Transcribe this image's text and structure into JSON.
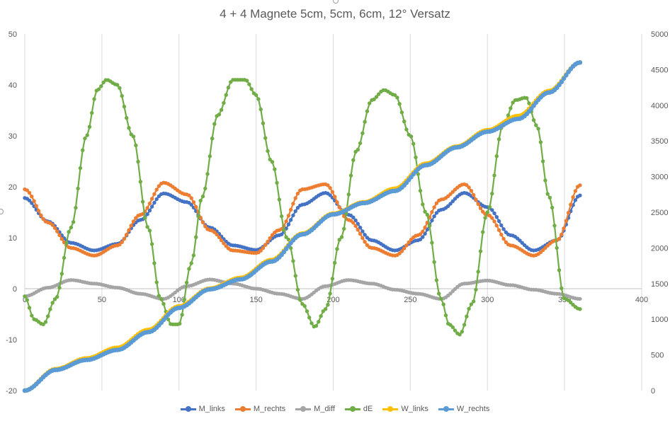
{
  "chart_data": {
    "type": "line",
    "title": "4 + 4 Magnete 5cm, 5cm, 6cm, 12° Versatz",
    "xlim": [
      0,
      400
    ],
    "ylim_left": [
      -20,
      50
    ],
    "ylim_right": [
      0,
      5000
    ],
    "x_ticks": [
      "0",
      "50",
      "100",
      "150",
      "200",
      "250",
      "300",
      "350",
      "400"
    ],
    "y_left_ticks": [
      "-20",
      "-10",
      "0",
      "10",
      "20",
      "30",
      "40",
      "50"
    ],
    "y_right_ticks": [
      "0",
      "500",
      "1000",
      "1500",
      "2000",
      "2500",
      "3000",
      "3500",
      "4000",
      "4500",
      "5000"
    ],
    "grid": "vertical",
    "legend": "bottom",
    "series": [
      {
        "name": "M_links",
        "axis": "left",
        "color": "#4472C4",
        "x": [
          0,
          15,
          30,
          45,
          60,
          75,
          90,
          105,
          120,
          135,
          150,
          165,
          180,
          195,
          210,
          225,
          240,
          255,
          270,
          285,
          300,
          315,
          330,
          345,
          360
        ],
        "y": [
          17.8,
          13.2,
          9,
          7.5,
          8.8,
          13.5,
          18.7,
          17,
          12,
          8.5,
          7.6,
          10.5,
          16.5,
          18.8,
          14.5,
          9.5,
          7.5,
          9.5,
          15.5,
          18.8,
          16,
          10.5,
          7.5,
          9.5,
          18.3
        ]
      },
      {
        "name": "M_rechts",
        "axis": "left",
        "color": "#ED7D31",
        "x": [
          0,
          15,
          30,
          45,
          60,
          75,
          90,
          105,
          120,
          135,
          150,
          165,
          180,
          195,
          210,
          225,
          240,
          255,
          270,
          285,
          300,
          315,
          330,
          345,
          360
        ],
        "y": [
          19.5,
          13,
          8,
          6.5,
          8.5,
          14.5,
          20.8,
          18.5,
          11.5,
          7.5,
          7,
          11.5,
          19.5,
          20.5,
          13.5,
          8,
          6.5,
          10.5,
          17.5,
          20.5,
          14.5,
          8.5,
          6.5,
          9.5,
          20.3
        ]
      },
      {
        "name": "M_diff",
        "axis": "left",
        "color": "#A5A5A5",
        "x": [
          0,
          15,
          30,
          45,
          60,
          75,
          90,
          105,
          120,
          135,
          150,
          165,
          180,
          195,
          210,
          225,
          240,
          255,
          270,
          285,
          300,
          315,
          330,
          345,
          360
        ],
        "y": [
          -1.5,
          0.2,
          1.7,
          1,
          0.2,
          -1,
          -2,
          0.5,
          1.8,
          1,
          0,
          -1,
          -2,
          0.5,
          1.7,
          1,
          -0.2,
          -1,
          -2,
          1,
          1.6,
          0.7,
          -0.2,
          -1,
          -2
        ]
      },
      {
        "name": "dE",
        "axis": "left",
        "color": "#70AD47",
        "x": [
          0,
          6,
          12,
          20,
          30,
          40,
          47,
          53,
          60,
          70,
          80,
          88,
          95,
          100,
          108,
          115,
          125,
          135,
          143,
          150,
          160,
          170,
          180,
          188,
          195,
          205,
          215,
          225,
          233,
          240,
          250,
          260,
          270,
          275,
          282,
          290,
          300,
          310,
          318,
          325,
          332,
          340,
          350,
          360
        ],
        "y": [
          -1.5,
          -6,
          -7,
          -2,
          12,
          30,
          39,
          41,
          40,
          30,
          12,
          -2,
          -7,
          -7,
          5,
          18,
          34,
          41,
          41,
          38,
          25,
          10,
          -3,
          -7.5,
          -4,
          10,
          27,
          37,
          39,
          38,
          30,
          15,
          -2,
          -7,
          -9,
          -3,
          15,
          32,
          37,
          37.5,
          32,
          18,
          -2,
          -4
        ]
      },
      {
        "name": "W_links",
        "axis": "right",
        "color": "#FFC000",
        "x": [
          0,
          20,
          40,
          60,
          80,
          100,
          120,
          140,
          160,
          180,
          200,
          220,
          240,
          260,
          280,
          300,
          320,
          340,
          360
        ],
        "y": [
          0,
          300,
          450,
          600,
          850,
          1180,
          1430,
          1580,
          1830,
          2200,
          2480,
          2640,
          2830,
          3180,
          3420,
          3650,
          3850,
          4200,
          4600
        ]
      },
      {
        "name": "W_rechts",
        "axis": "right",
        "color": "#5B9BD5",
        "x": [
          0,
          20,
          40,
          60,
          80,
          100,
          120,
          140,
          160,
          180,
          200,
          220,
          240,
          260,
          280,
          300,
          320,
          340,
          360
        ],
        "y": [
          0,
          290,
          430,
          570,
          820,
          1160,
          1420,
          1560,
          1810,
          2190,
          2470,
          2630,
          2800,
          3160,
          3410,
          3630,
          3810,
          4180,
          4600
        ]
      }
    ]
  }
}
